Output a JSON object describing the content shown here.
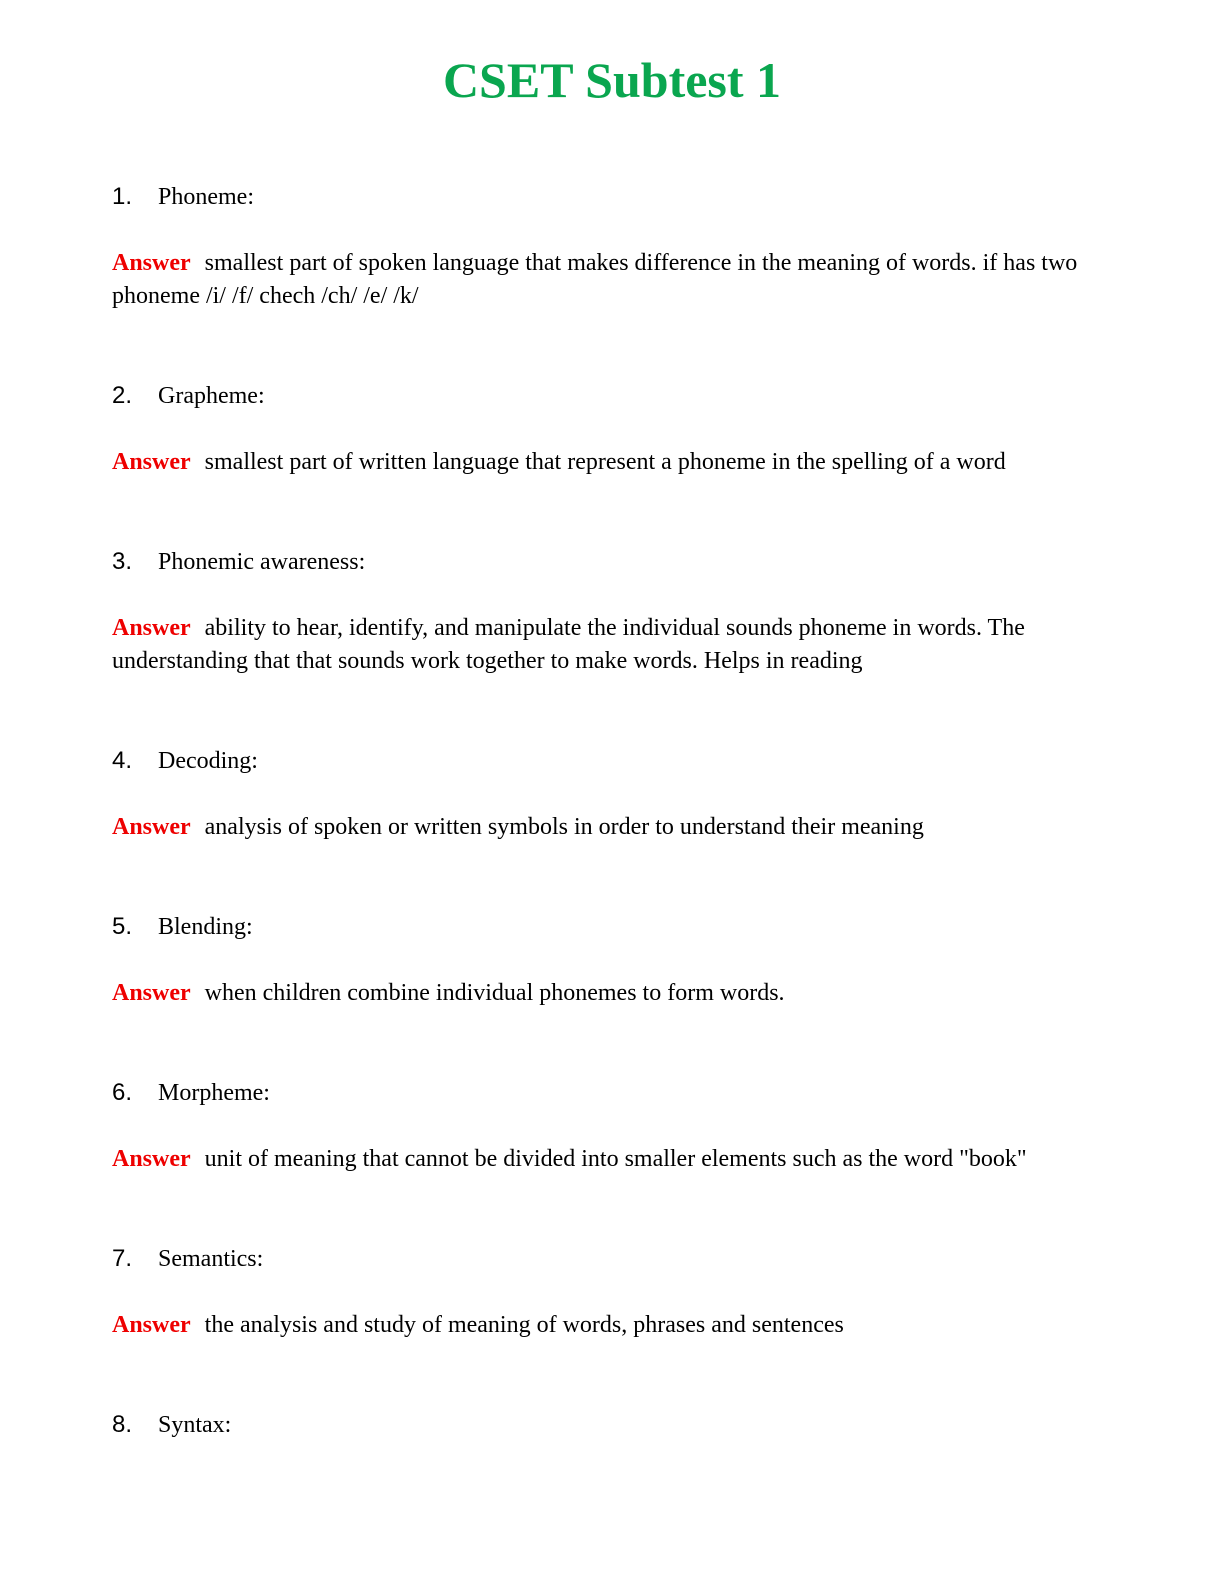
{
  "page": {
    "title": "CSET Subtest 1",
    "title_color": "#0aa64f",
    "answer_label": "Answer",
    "answer_color": "#ee0000"
  },
  "items": [
    {
      "number": "1.",
      "term": "Phoneme:",
      "answer": "smallest part of spoken language that makes difference in the meaning of words. if has two phoneme /i/ /f/ chech /ch/ /e/ /k/"
    },
    {
      "number": "2.",
      "term": "Grapheme:",
      "answer": "smallest part of written language that represent a phoneme in the spelling of a word"
    },
    {
      "number": "3.",
      "term": "Phonemic awareness:",
      "answer": "ability to hear, identify, and manipulate the individual sounds phoneme in words. The understanding that that sounds work together to make words. Helps in reading"
    },
    {
      "number": "4.",
      "term": "Decoding:",
      "answer": "analysis of spoken or written symbols in order to understand their meaning"
    },
    {
      "number": "5.",
      "term": "Blending:",
      "answer": "when children combine individual phonemes to form words."
    },
    {
      "number": "6.",
      "term": "Morpheme:",
      "answer": "unit of meaning that cannot be divided into smaller elements such as the word \"book\""
    },
    {
      "number": "7.",
      "term": "Semantics:",
      "answer": "the analysis and study of meaning of words, phrases and sentences"
    },
    {
      "number": "8.",
      "term": "Syntax:",
      "answer": ""
    }
  ]
}
